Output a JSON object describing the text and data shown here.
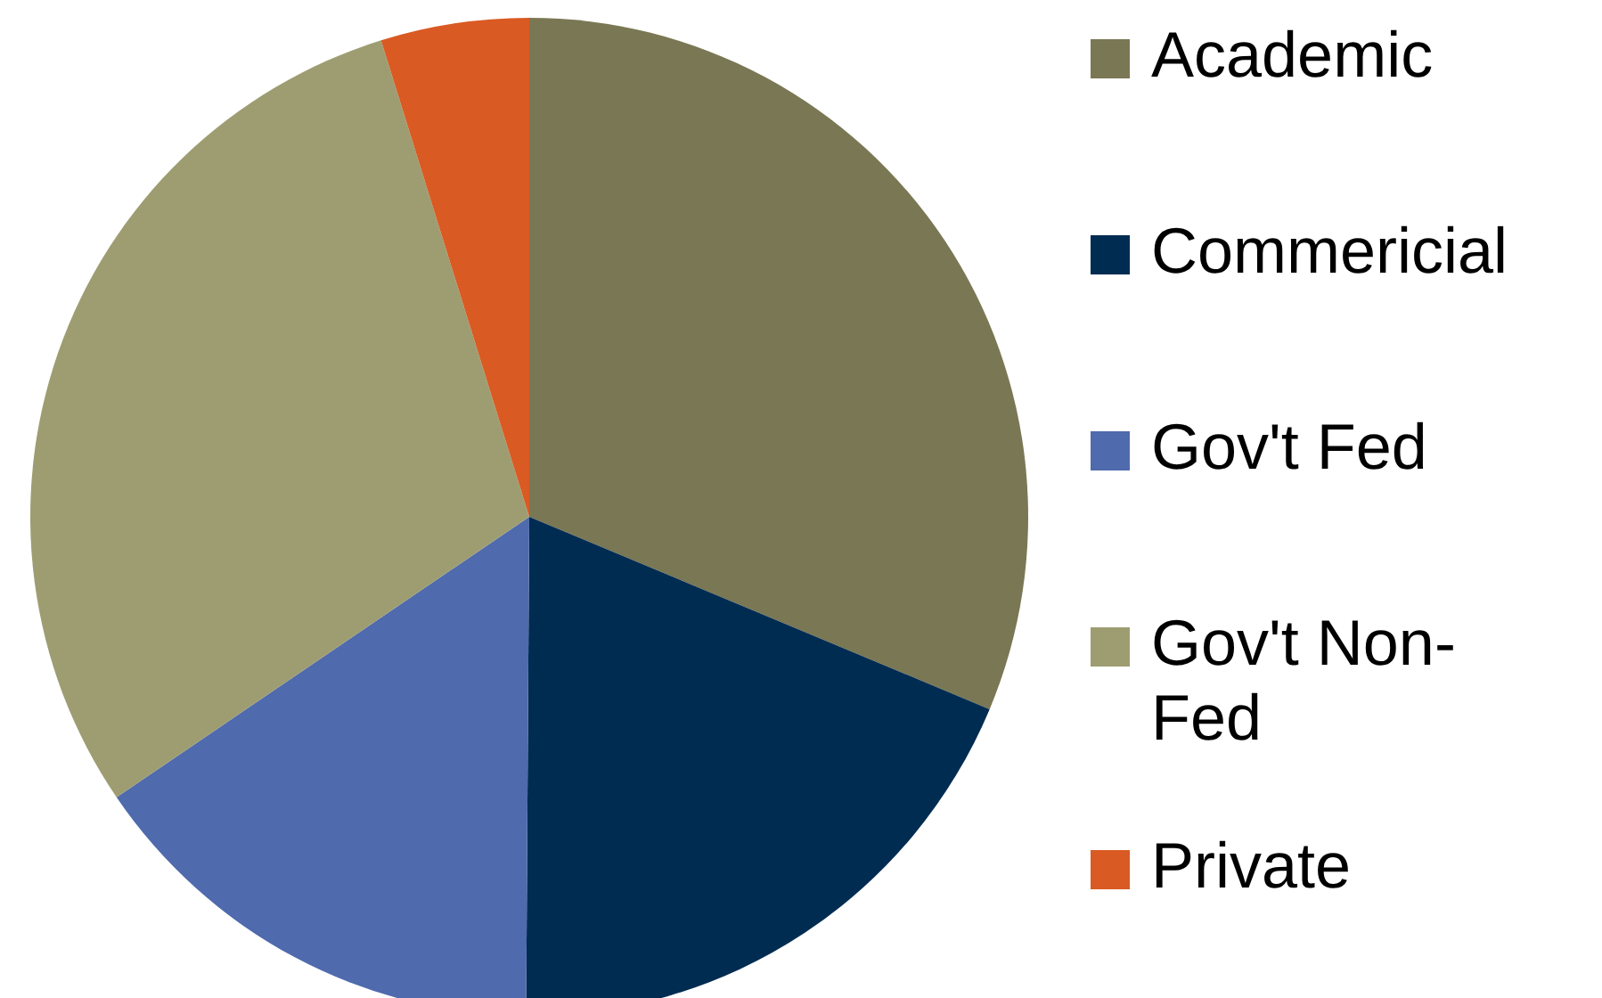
{
  "chart_data": {
    "type": "pie",
    "categories": [
      "Academic",
      "Commericial",
      "Gov't Fed",
      "Gov't Non-Fed",
      "Private"
    ],
    "values": [
      31.3,
      18.8,
      15.4,
      29.7,
      4.8
    ],
    "colors": [
      "#7a7754",
      "#002c52",
      "#4f6aad",
      "#9e9d72",
      "#d95a23"
    ],
    "legend": "right"
  }
}
